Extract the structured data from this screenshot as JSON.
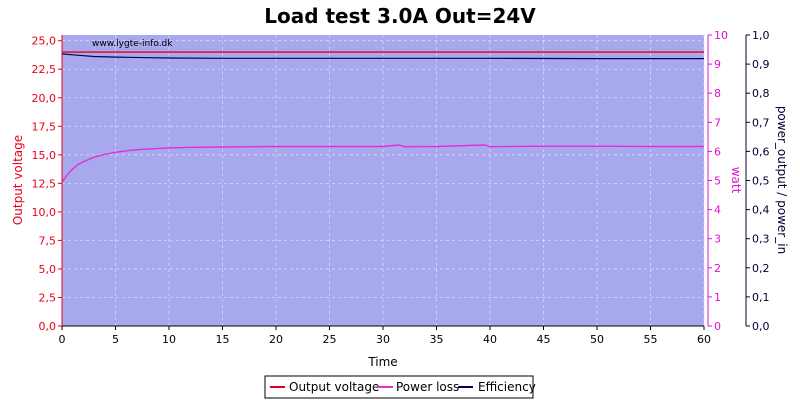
{
  "chart_data": {
    "type": "line",
    "title": "Load test 3.0A Out=24V",
    "watermark": "www.lygte-info.dk",
    "xlabel": "Time",
    "xlim": [
      0,
      60
    ],
    "xticks": [
      "0",
      "5",
      "10",
      "15",
      "20",
      "25",
      "30",
      "35",
      "40",
      "45",
      "50",
      "55",
      "60"
    ],
    "y_left": {
      "label": "Output voltage",
      "color": "#e8001a",
      "lim": [
        0,
        25.5
      ],
      "ticks": [
        "0,0",
        "2,5",
        "5,0",
        "7,5",
        "10,0",
        "12,5",
        "15,0",
        "17,5",
        "20,0",
        "22,5",
        "25,0"
      ]
    },
    "y_right1": {
      "label": "watt",
      "color": "#e010d0",
      "lim": [
        0,
        10
      ],
      "ticks": [
        "0",
        "1",
        "2",
        "3",
        "4",
        "5",
        "6",
        "7",
        "8",
        "9",
        "10"
      ]
    },
    "y_right2": {
      "label": "power_output / power_in",
      "color": "#000033",
      "lim": [
        0,
        1
      ],
      "ticks": [
        "0,0",
        "0,1",
        "0,2",
        "0,3",
        "0,4",
        "0,5",
        "0,6",
        "0,7",
        "0,8",
        "0,9",
        "1,0"
      ]
    },
    "grid": true,
    "legend_position": "bottom",
    "plot_background": "#a8a8ec",
    "series": [
      {
        "name": "Output voltage",
        "axis": "y_left",
        "color": "#e8001a",
        "x": [
          0,
          5,
          10,
          15,
          20,
          25,
          30,
          35,
          40,
          45,
          50,
          55,
          60
        ],
        "values": [
          24.0,
          24.0,
          24.0,
          24.0,
          24.0,
          24.0,
          24.0,
          24.0,
          24.0,
          24.0,
          24.0,
          24.0,
          24.0
        ]
      },
      {
        "name": "Power loss",
        "axis": "y_right1",
        "color": "#e030d8",
        "x": [
          0,
          0.5,
          1,
          1.5,
          2,
          3,
          4,
          5,
          6,
          7,
          8,
          10,
          12,
          15,
          18,
          20,
          25,
          30,
          31.5,
          32,
          35,
          39.5,
          40,
          45,
          50,
          55,
          60
        ],
        "values": [
          4.95,
          5.2,
          5.4,
          5.55,
          5.65,
          5.8,
          5.9,
          5.97,
          6.02,
          6.06,
          6.08,
          6.12,
          6.14,
          6.15,
          6.16,
          6.17,
          6.17,
          6.17,
          6.22,
          6.16,
          6.17,
          6.22,
          6.16,
          6.18,
          6.18,
          6.17,
          6.17
        ]
      },
      {
        "name": "Efficiency",
        "axis": "y_right2",
        "color": "#000066",
        "x": [
          0,
          1,
          2,
          3,
          5,
          8,
          10,
          15,
          20,
          30,
          40,
          50,
          60
        ],
        "values": [
          0.935,
          0.932,
          0.929,
          0.926,
          0.924,
          0.922,
          0.921,
          0.92,
          0.92,
          0.92,
          0.92,
          0.919,
          0.919
        ]
      }
    ]
  }
}
